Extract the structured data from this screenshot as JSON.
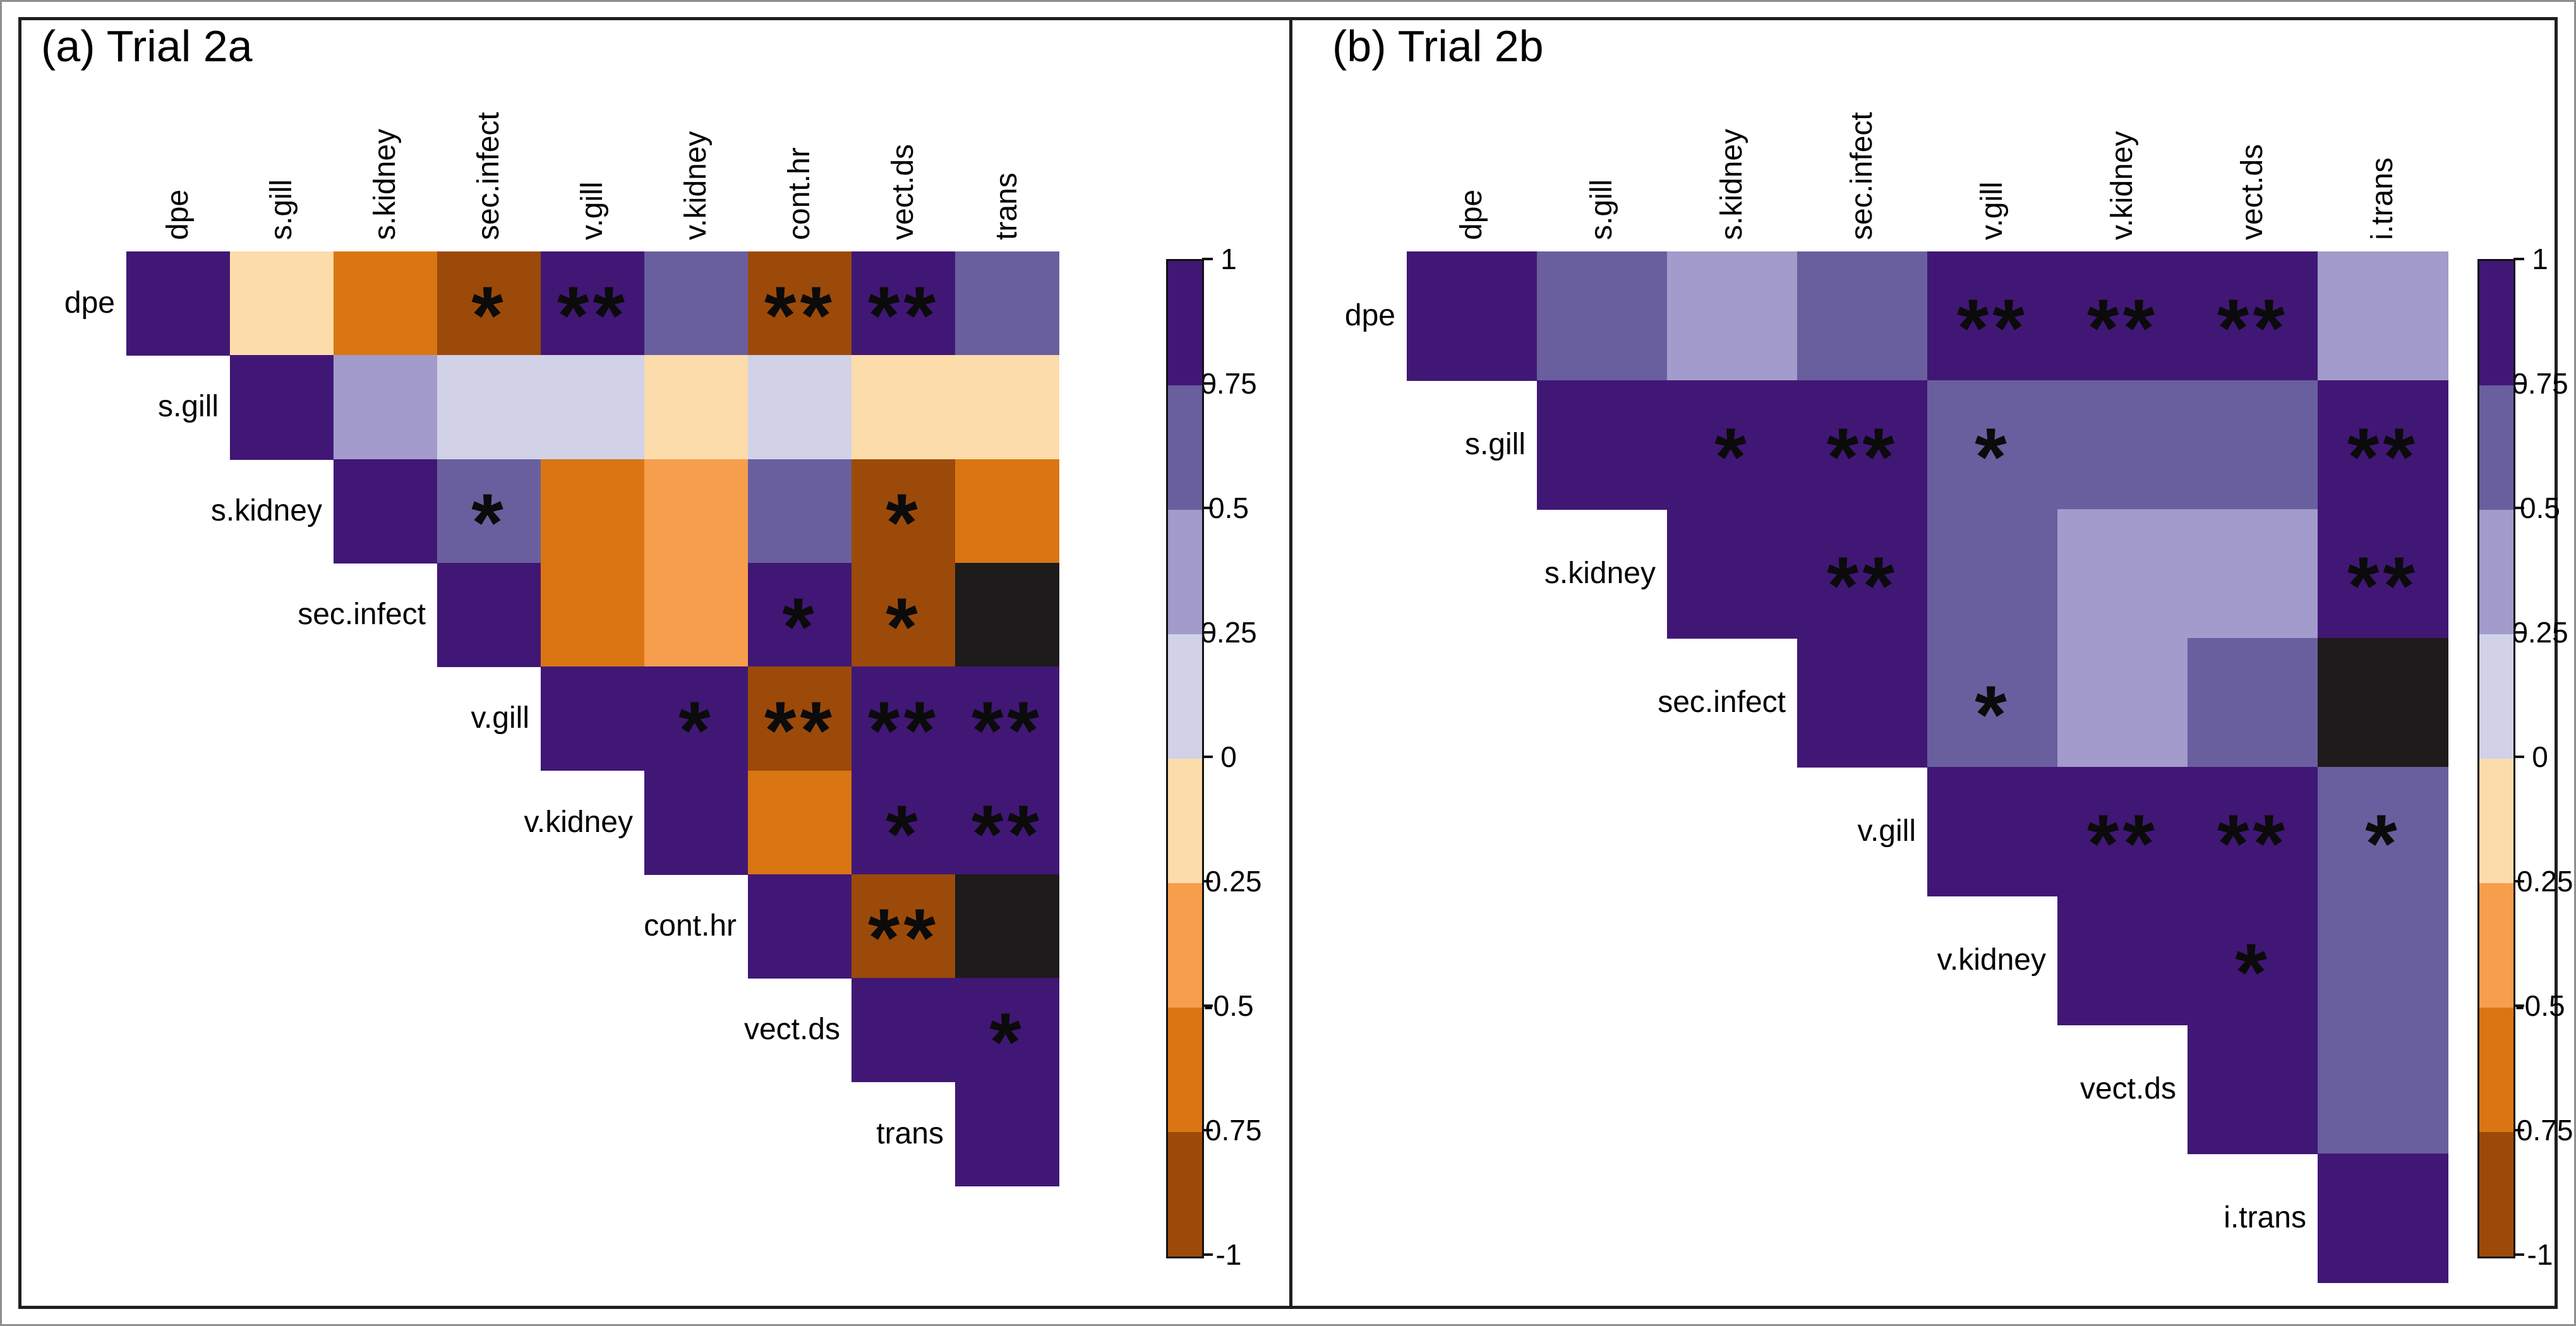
{
  "figure_description": "Pairwise correlation matrices (upper triangle) for Trial 2a and Trial 2b with significance asterisks",
  "colors": {
    "P4": "#411775",
    "P3": "#695f9e",
    "P2": "#a29bcb",
    "P1": "#d1d2e8",
    "O1": "#fcdcab",
    "O2": "#f79e4d",
    "O3": "#d97613",
    "O4": "#9c4a0a",
    "NA": "#1d1b1c",
    "frame": "#1f1f1f",
    "background": "#ffffff"
  },
  "bin_value_ranges": {
    "P4": [
      0.75,
      1
    ],
    "P3": [
      0.5,
      0.75
    ],
    "P2": [
      0.25,
      0.5
    ],
    "P1": [
      0,
      0.25
    ],
    "O1": [
      -0.25,
      0
    ],
    "O2": [
      -0.5,
      -0.25
    ],
    "O3": [
      -0.75,
      -0.5
    ],
    "O4": [
      -1,
      -0.75
    ],
    "NA": null
  },
  "colorbar": {
    "ticks": [
      "1",
      "0.75",
      "0.5",
      "0.25",
      "0",
      "-0.25",
      "-0.5",
      "-0.75",
      "-1"
    ],
    "segments": [
      "P4",
      "P3",
      "P2",
      "P1",
      "O1",
      "O2",
      "O3",
      "O4"
    ],
    "value_range": [
      -1,
      1
    ],
    "position": "right"
  },
  "chart_data": [
    {
      "type": "heatmap",
      "title": "(a) Trial 2a",
      "shape": "upper-triangle-with-diagonal",
      "labels": [
        "dpe",
        "s.gill",
        "s.kidney",
        "sec.infect",
        "v.gill",
        "v.kidney",
        "cont.hr",
        "vect.ds",
        "trans"
      ],
      "rows": [
        {
          "label": "dpe",
          "cells": [
            {
              "bin": "P4",
              "sig": ""
            },
            {
              "bin": "O1",
              "sig": ""
            },
            {
              "bin": "O3",
              "sig": ""
            },
            {
              "bin": "O4",
              "sig": "*"
            },
            {
              "bin": "P4",
              "sig": "**"
            },
            {
              "bin": "P3",
              "sig": ""
            },
            {
              "bin": "O4",
              "sig": "**"
            },
            {
              "bin": "P4",
              "sig": "**"
            },
            {
              "bin": "P3",
              "sig": ""
            }
          ]
        },
        {
          "label": "s.gill",
          "cells": [
            {
              "bin": "P4",
              "sig": ""
            },
            {
              "bin": "P2",
              "sig": ""
            },
            {
              "bin": "P1",
              "sig": ""
            },
            {
              "bin": "P1",
              "sig": ""
            },
            {
              "bin": "O1",
              "sig": ""
            },
            {
              "bin": "P1",
              "sig": ""
            },
            {
              "bin": "O1",
              "sig": ""
            },
            {
              "bin": "O1",
              "sig": ""
            }
          ]
        },
        {
          "label": "s.kidney",
          "cells": [
            {
              "bin": "P4",
              "sig": ""
            },
            {
              "bin": "P3",
              "sig": "*"
            },
            {
              "bin": "O3",
              "sig": ""
            },
            {
              "bin": "O2",
              "sig": ""
            },
            {
              "bin": "P3",
              "sig": ""
            },
            {
              "bin": "O4",
              "sig": "*"
            },
            {
              "bin": "O3",
              "sig": ""
            }
          ]
        },
        {
          "label": "sec.infect",
          "cells": [
            {
              "bin": "P4",
              "sig": ""
            },
            {
              "bin": "O3",
              "sig": ""
            },
            {
              "bin": "O2",
              "sig": ""
            },
            {
              "bin": "P4",
              "sig": "*"
            },
            {
              "bin": "O4",
              "sig": "*"
            },
            {
              "bin": "NA",
              "sig": ""
            }
          ]
        },
        {
          "label": "v.gill",
          "cells": [
            {
              "bin": "P4",
              "sig": ""
            },
            {
              "bin": "P4",
              "sig": "*"
            },
            {
              "bin": "O4",
              "sig": "**"
            },
            {
              "bin": "P4",
              "sig": "**"
            },
            {
              "bin": "P4",
              "sig": "**"
            }
          ]
        },
        {
          "label": "v.kidney",
          "cells": [
            {
              "bin": "P4",
              "sig": ""
            },
            {
              "bin": "O3",
              "sig": ""
            },
            {
              "bin": "P4",
              "sig": "*"
            },
            {
              "bin": "P4",
              "sig": "**"
            }
          ]
        },
        {
          "label": "cont.hr",
          "cells": [
            {
              "bin": "P4",
              "sig": ""
            },
            {
              "bin": "O4",
              "sig": "**"
            },
            {
              "bin": "NA",
              "sig": ""
            }
          ]
        },
        {
          "label": "vect.ds",
          "cells": [
            {
              "bin": "P4",
              "sig": ""
            },
            {
              "bin": "P4",
              "sig": "*"
            }
          ]
        },
        {
          "label": "trans",
          "cells": [
            {
              "bin": "P4",
              "sig": ""
            }
          ]
        }
      ]
    },
    {
      "type": "heatmap",
      "title": "(b) Trial 2b",
      "shape": "upper-triangle-with-diagonal",
      "labels": [
        "dpe",
        "s.gill",
        "s.kidney",
        "sec.infect",
        "v.gill",
        "v.kidney",
        "vect.ds",
        "i.trans"
      ],
      "rows": [
        {
          "label": "dpe",
          "cells": [
            {
              "bin": "P4",
              "sig": ""
            },
            {
              "bin": "P3",
              "sig": ""
            },
            {
              "bin": "P2",
              "sig": ""
            },
            {
              "bin": "P3",
              "sig": ""
            },
            {
              "bin": "P4",
              "sig": "**"
            },
            {
              "bin": "P4",
              "sig": "**"
            },
            {
              "bin": "P4",
              "sig": "**"
            },
            {
              "bin": "P2",
              "sig": ""
            }
          ]
        },
        {
          "label": "s.gill",
          "cells": [
            {
              "bin": "P4",
              "sig": ""
            },
            {
              "bin": "P4",
              "sig": "*"
            },
            {
              "bin": "P4",
              "sig": "**"
            },
            {
              "bin": "P3",
              "sig": "*"
            },
            {
              "bin": "P3",
              "sig": ""
            },
            {
              "bin": "P3",
              "sig": ""
            },
            {
              "bin": "P4",
              "sig": "**"
            }
          ]
        },
        {
          "label": "s.kidney",
          "cells": [
            {
              "bin": "P4",
              "sig": ""
            },
            {
              "bin": "P4",
              "sig": "**"
            },
            {
              "bin": "P3",
              "sig": ""
            },
            {
              "bin": "P2",
              "sig": ""
            },
            {
              "bin": "P2",
              "sig": ""
            },
            {
              "bin": "P4",
              "sig": "**"
            }
          ]
        },
        {
          "label": "sec.infect",
          "cells": [
            {
              "bin": "P4",
              "sig": ""
            },
            {
              "bin": "P3",
              "sig": "*"
            },
            {
              "bin": "P2",
              "sig": ""
            },
            {
              "bin": "P3",
              "sig": ""
            },
            {
              "bin": "NA",
              "sig": ""
            }
          ]
        },
        {
          "label": "v.gill",
          "cells": [
            {
              "bin": "P4",
              "sig": ""
            },
            {
              "bin": "P4",
              "sig": "**"
            },
            {
              "bin": "P4",
              "sig": "**"
            },
            {
              "bin": "P3",
              "sig": "*"
            }
          ]
        },
        {
          "label": "v.kidney",
          "cells": [
            {
              "bin": "P4",
              "sig": ""
            },
            {
              "bin": "P4",
              "sig": "*"
            },
            {
              "bin": "P3",
              "sig": ""
            }
          ]
        },
        {
          "label": "vect.ds",
          "cells": [
            {
              "bin": "P4",
              "sig": ""
            },
            {
              "bin": "P3",
              "sig": ""
            }
          ]
        },
        {
          "label": "i.trans",
          "cells": [
            {
              "bin": "P4",
              "sig": ""
            }
          ]
        }
      ]
    }
  ]
}
